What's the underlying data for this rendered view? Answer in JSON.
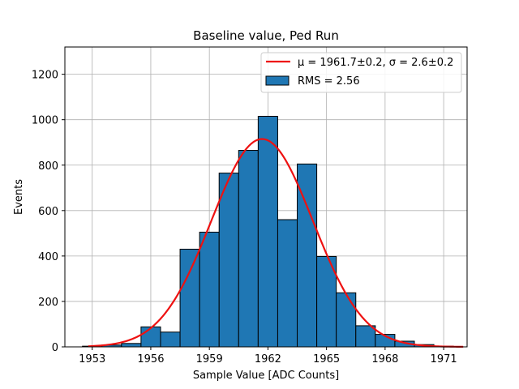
{
  "chart_data": {
    "type": "bar",
    "title": "Baseline value, Ped Run",
    "xlabel": "Sample Value [ADC Counts]",
    "ylabel": "Events",
    "xlim": [
      1951.6,
      1972.2
    ],
    "ylim": [
      0,
      1320
    ],
    "xticks": [
      1953,
      1956,
      1959,
      1962,
      1965,
      1968,
      1971
    ],
    "yticks": [
      0,
      200,
      400,
      600,
      800,
      1000,
      1200
    ],
    "grid": true,
    "legend_position": "top-right",
    "histogram": {
      "name": "RMS = 2.56",
      "color": "#1f77b4",
      "edgecolor": "#000000",
      "bin_edges": [
        1952.5,
        1953.5,
        1954.5,
        1955.5,
        1956.5,
        1957.5,
        1958.5,
        1959.5,
        1960.5,
        1961.5,
        1962.5,
        1963.5,
        1964.5,
        1965.5,
        1966.5,
        1967.5,
        1968.5,
        1969.5,
        1970.5,
        1971.5
      ],
      "counts": [
        3,
        8,
        15,
        88,
        65,
        430,
        505,
        765,
        865,
        1015,
        560,
        805,
        398,
        238,
        93,
        55,
        25,
        10,
        3
      ]
    },
    "fit": {
      "name_prefix": "μ = 1961.7±0.2, σ = 2.6±0.2",
      "type": "gaussian",
      "mu": 1961.7,
      "sigma": 2.6,
      "amplitude": 915,
      "x_range": [
        1952.8,
        1972.0
      ],
      "color": "#ee1111"
    }
  }
}
